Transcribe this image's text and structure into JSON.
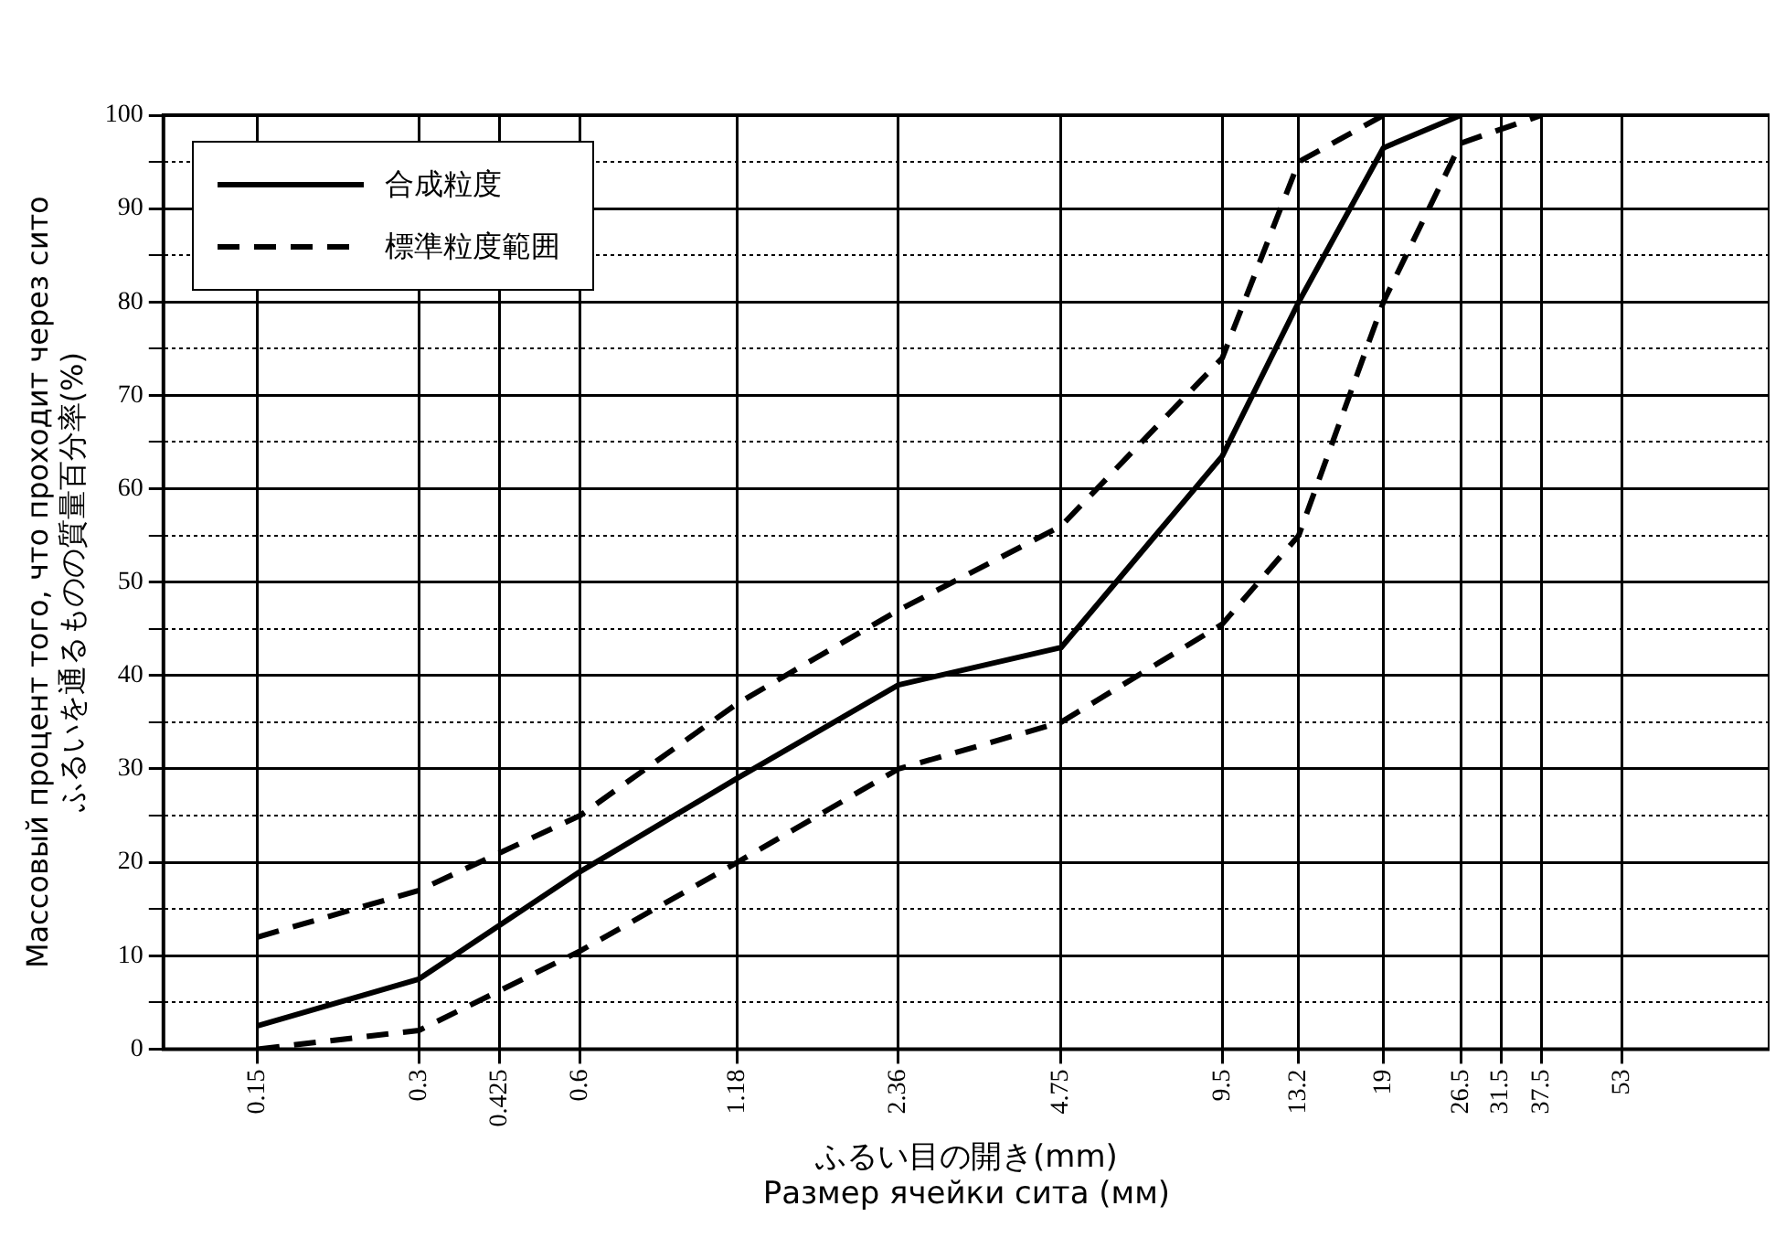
{
  "chart_data": {
    "type": "line",
    "xlabel": "ふるい目の開き(mm)\nРазмер ячейки сита (мм)",
    "ylabel": "Массовый процент того, что проходит через сито\nふるいを通るものの質量百分率(%)",
    "log": "x",
    "xlim": [
      0.1,
      100
    ],
    "xticks": [
      0.15,
      0.3,
      0.425,
      0.6,
      1.18,
      2.36,
      4.75,
      9.5,
      13.2,
      19,
      26.5,
      31.5,
      37.5,
      53
    ],
    "ylim": [
      0,
      100
    ],
    "yticks": [
      0,
      {
        "value": 5,
        "label": null
      },
      10,
      {
        "value": 15,
        "label": null
      },
      20,
      {
        "value": 25,
        "label": null
      },
      30,
      {
        "value": 35,
        "label": null
      },
      40,
      {
        "value": 45,
        "label": null
      },
      50,
      {
        "value": 55,
        "label": null
      },
      60,
      {
        "value": 65,
        "label": null
      },
      70,
      {
        "value": 75,
        "label": null
      },
      80,
      {
        "value": 85,
        "label": null
      },
      90,
      {
        "value": 95,
        "label": null
      },
      100
    ],
    "grid": true,
    "legend": "top left",
    "series": [
      {
        "name": "合成粒度",
        "color": "#000000",
        "line_style": "solid",
        "x": [
          0.15,
          0.3,
          0.6,
          1.18,
          2.36,
          4.75,
          9.5,
          13.2,
          19,
          26.5
        ],
        "values": [
          2.5,
          7.5,
          19,
          29,
          39,
          43,
          63.5,
          80,
          96.5,
          100
        ]
      },
      {
        "name": "標準粒度範囲",
        "color": "#000000",
        "line_style": "dashed",
        "x": [
          0.15,
          0.3,
          0.6,
          1.18,
          2.36,
          4.75,
          9.5,
          13.2,
          19
        ],
        "values": [
          12,
          17,
          25,
          37,
          47,
          56,
          74,
          95,
          100
        ]
      },
      {
        "color": "#000000",
        "line_style": "dashed",
        "x": [
          0.15,
          0.3,
          0.6,
          1.18,
          2.36,
          4.75,
          9.5,
          13.2,
          19,
          26.5,
          37.5
        ],
        "values": [
          0,
          2,
          10.5,
          20,
          30,
          35,
          45.5,
          55,
          80,
          97,
          100
        ]
      }
    ]
  }
}
